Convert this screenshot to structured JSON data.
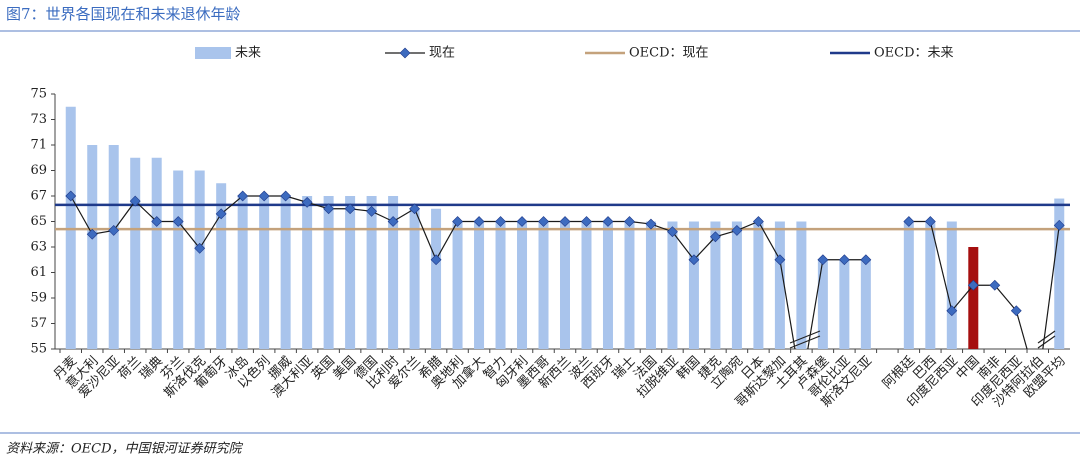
{
  "chart_data": {
    "type": "bar_line",
    "title": "图7：世界各国现在和未来退休年龄",
    "source": "资料来源：OECD，中国银河证券研究院",
    "categories": [
      "丹麦",
      "意大利",
      "爱沙尼亚",
      "荷兰",
      "瑞典",
      "芬兰",
      "斯洛伐克",
      "葡萄牙",
      "冰岛",
      "以色列",
      "挪威",
      "澳大利亚",
      "英国",
      "美国",
      "德国",
      "比利时",
      "爱尔兰",
      "希腊",
      "奥地利",
      "加拿大",
      "智力",
      "匈牙利",
      "墨西哥",
      "新西兰",
      "波兰",
      "西班牙",
      "瑞士",
      "法国",
      "拉脱维亚",
      "韩国",
      "捷克",
      "立陶宛",
      "日本",
      "哥斯达黎加",
      "土耳其",
      "卢森堡",
      "哥伦比亚",
      "斯洛文尼亚",
      null,
      "阿根廷",
      "巴西",
      "印度尼西亚",
      "中国",
      "南非",
      "印度尼西亚",
      "沙特阿拉伯",
      "欧盟平均"
    ],
    "series": [
      {
        "name": "未来",
        "type": "bar",
        "color": "#a9c4ec",
        "highlight": {
          "index": 42,
          "color": "#a50f0f"
        },
        "values": [
          74,
          71,
          71,
          70,
          70,
          69,
          69,
          68,
          67,
          67,
          67,
          67,
          67,
          67,
          67,
          67,
          66,
          66,
          65,
          65,
          65,
          65,
          65,
          65,
          65,
          65,
          65,
          65,
          65,
          65,
          65,
          65,
          65,
          65,
          65,
          62,
          62,
          62,
          null,
          65,
          65,
          65,
          63,
          null,
          null,
          null,
          66.8
        ]
      },
      {
        "name": "现在",
        "type": "line",
        "color": "#1a1a1a",
        "marker_color": "#3d6bbf",
        "values": [
          67,
          64,
          64.3,
          66.6,
          65,
          65,
          62.9,
          65.6,
          67,
          67,
          67,
          66.5,
          66,
          66,
          65.8,
          65,
          66,
          62,
          65,
          65,
          65,
          65,
          65,
          65,
          65,
          65,
          65,
          64.8,
          64.2,
          62,
          63.8,
          64.3,
          65,
          62,
          52,
          62,
          62,
          62,
          null,
          65,
          65,
          58,
          60,
          60,
          58,
          52,
          64.7
        ]
      }
    ],
    "reference_lines": [
      {
        "name": "OECD：现在",
        "value": 64.4,
        "color": "#c4a27c"
      },
      {
        "name": "OECD：未来",
        "value": 66.3,
        "color": "#1f3a8a"
      }
    ],
    "ylim": [
      55,
      75
    ],
    "yticks": [
      55,
      57,
      59,
      61,
      63,
      65,
      67,
      69,
      71,
      73,
      75
    ],
    "grid": false
  }
}
